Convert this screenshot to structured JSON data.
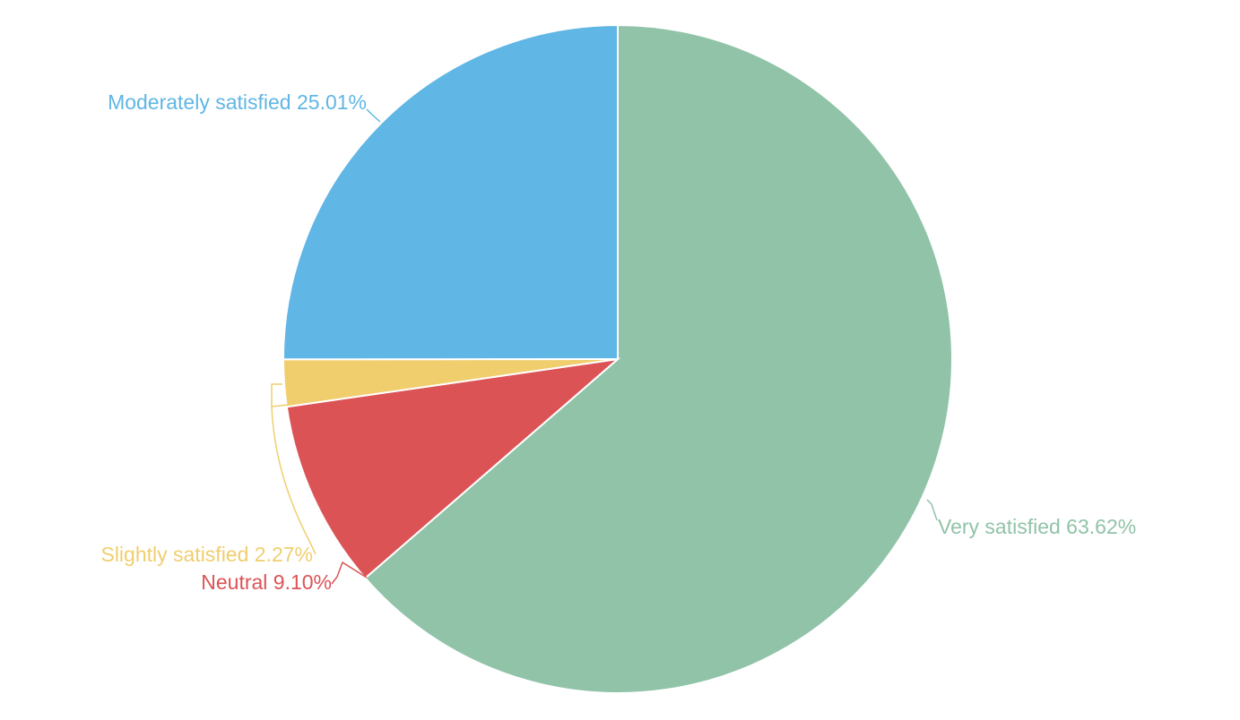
{
  "chart_data": {
    "type": "pie",
    "start": "12 o'clock",
    "direction": "clockwise",
    "slices": [
      {
        "label": "Very satisfied",
        "value": 63.62,
        "value_label": "63.62%",
        "color": "#90c3a8"
      },
      {
        "label": "Neutral",
        "value": 9.1,
        "value_label": "9.10%",
        "color": "#dc5356"
      },
      {
        "label": "Slightly satisfied",
        "value": 2.27,
        "value_label": "2.27%",
        "color": "#f0ce6e"
      },
      {
        "label": "Moderately satisfied",
        "value": 25.01,
        "value_label": "25.01%",
        "color": "#60b6e4"
      }
    ]
  }
}
